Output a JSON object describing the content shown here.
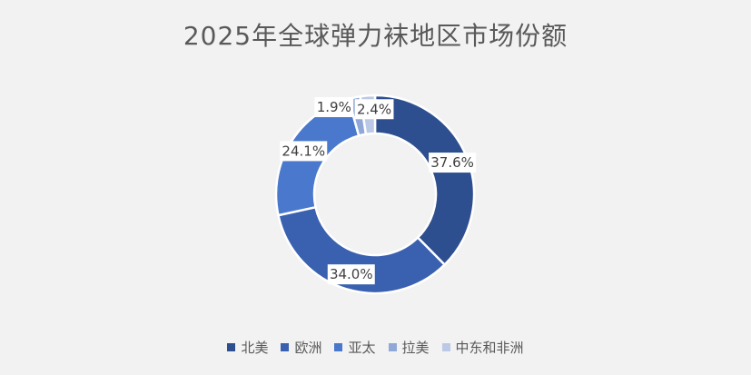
{
  "chart_data": {
    "type": "pie",
    "variant": "donut",
    "title": "2025年全球弹力袜地区市场份额",
    "categories": [
      "北美",
      "欧洲",
      "亚太",
      "拉美",
      "中东和非洲"
    ],
    "values": [
      37.6,
      34.0,
      24.1,
      1.9,
      2.4
    ],
    "value_labels": [
      "37.6%",
      "34.0%",
      "24.1%",
      "1.9%",
      "2.4%"
    ],
    "unit": "%",
    "colors": [
      "#2e4f8f",
      "#3a60b0",
      "#4a78cc",
      "#8fa8d8",
      "#bcc9e6"
    ],
    "legend": "bottom"
  }
}
